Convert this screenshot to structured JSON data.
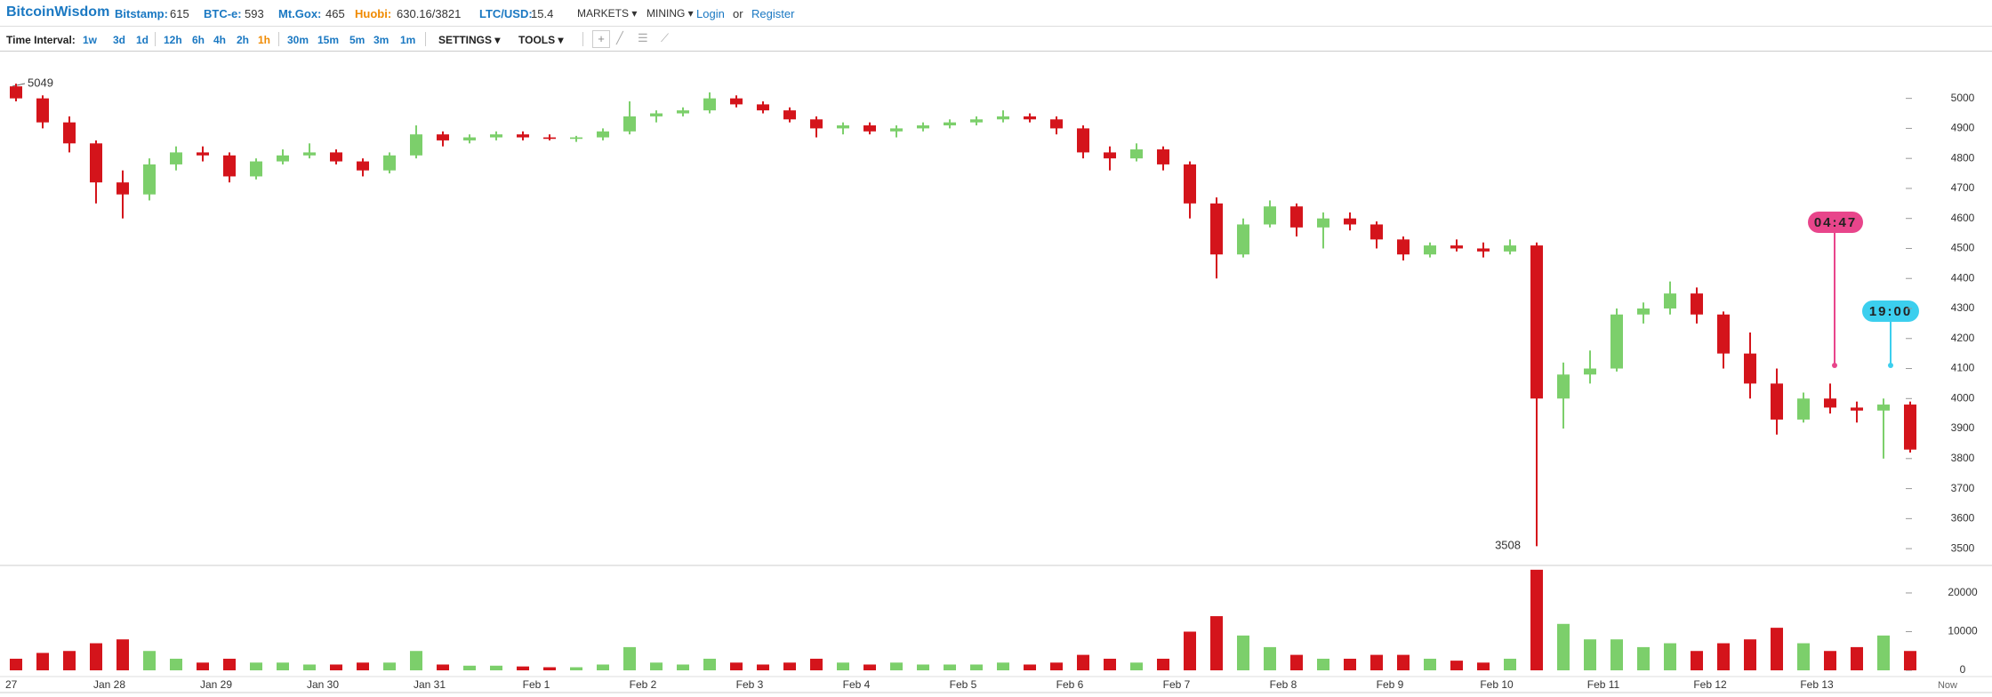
{
  "header": {
    "logo": "BitcoinWisdom",
    "prices": [
      {
        "label": "Bitstamp:",
        "value": "615"
      },
      {
        "label": "BTC-e:",
        "value": "593"
      },
      {
        "label": "Mt.Gox:",
        "value": "465"
      },
      {
        "label": "Huobi:",
        "value": "630.16/3821"
      },
      {
        "label": "LTC/USD:",
        "value": "15.4"
      }
    ],
    "menus": [
      "MARKETS",
      "MINING"
    ],
    "login": "Login",
    "or": "or",
    "register": "Register"
  },
  "toolbar": {
    "label": "Time Interval:",
    "intervals": [
      "1w",
      "3d",
      "1d",
      "12h",
      "6h",
      "4h",
      "2h",
      "1h",
      "30m",
      "15m",
      "5m",
      "3m",
      "1m"
    ],
    "settings": "SETTINGS",
    "tools": "TOOLS"
  },
  "chart_data": {
    "type": "candlestick",
    "categories": [
      "27",
      null,
      null,
      null,
      "Jan 28",
      null,
      null,
      null,
      "Jan 29",
      null,
      null,
      null,
      "Jan 30",
      null,
      null,
      null,
      "Jan 31",
      null,
      null,
      null,
      "Feb 1",
      null,
      null,
      null,
      "Feb 2",
      null,
      null,
      null,
      "Feb 3",
      null,
      null,
      null,
      "Feb 4",
      null,
      null,
      null,
      "Feb 5",
      null,
      null,
      null,
      "Feb 6",
      null,
      null,
      null,
      "Feb 7",
      null,
      null,
      null,
      "Feb 8",
      null,
      null,
      null,
      "Feb 9",
      null,
      null,
      null,
      "Feb 10",
      null,
      null,
      null,
      "Feb 11",
      null,
      null,
      null,
      "Feb 12",
      null,
      null,
      null,
      "Feb 13",
      null,
      null,
      null
    ],
    "end_label": "Now",
    "open": [
      5040,
      5000,
      4920,
      4850,
      4720,
      4680,
      4780,
      4820,
      4810,
      4740,
      4790,
      4810,
      4820,
      4790,
      4760,
      4810,
      4880,
      4860,
      4870,
      4880,
      4870,
      4865,
      4870,
      4890,
      4940,
      4950,
      4960,
      5000,
      4980,
      4960,
      4930,
      4900,
      4910,
      4890,
      4900,
      4910,
      4920,
      4930,
      4940,
      4930,
      4900,
      4820,
      4800,
      4830,
      4780,
      4650,
      4480,
      4580,
      4640,
      4570,
      4600,
      4580,
      4530,
      4480,
      4510,
      4500,
      4490,
      4510,
      4000,
      4080,
      4100,
      4280,
      4300,
      4350,
      4280,
      4150,
      4050,
      3930,
      4000,
      3970,
      3960,
      3980
    ],
    "high": [
      5049,
      5010,
      4940,
      4860,
      4760,
      4800,
      4840,
      4840,
      4820,
      4800,
      4830,
      4850,
      4830,
      4800,
      4820,
      4910,
      4890,
      4880,
      4890,
      4890,
      4880,
      4875,
      4900,
      4990,
      4960,
      4970,
      5020,
      5010,
      4990,
      4970,
      4940,
      4920,
      4920,
      4910,
      4920,
      4930,
      4940,
      4960,
      4950,
      4940,
      4910,
      4840,
      4850,
      4840,
      4790,
      4670,
      4600,
      4660,
      4650,
      4620,
      4620,
      4590,
      4540,
      4520,
      4530,
      4520,
      4530,
      4520,
      4120,
      4160,
      4300,
      4320,
      4390,
      4370,
      4290,
      4220,
      4100,
      4020,
      4050,
      3990,
      4000,
      3990
    ],
    "low": [
      4990,
      4900,
      4820,
      4650,
      4600,
      4660,
      4760,
      4790,
      4720,
      4730,
      4780,
      4800,
      4780,
      4740,
      4750,
      4800,
      4840,
      4850,
      4860,
      4860,
      4860,
      4855,
      4860,
      4880,
      4920,
      4940,
      4950,
      4970,
      4950,
      4920,
      4870,
      4880,
      4880,
      4870,
      4890,
      4900,
      4910,
      4920,
      4920,
      4880,
      4800,
      4760,
      4790,
      4760,
      4600,
      4400,
      4470,
      4570,
      4540,
      4500,
      4560,
      4500,
      4460,
      4470,
      4490,
      4470,
      4480,
      3508,
      3900,
      4050,
      4090,
      4250,
      4280,
      4250,
      4100,
      4000,
      3880,
      3920,
      3950,
      3920,
      3800,
      3820
    ],
    "close": [
      5000,
      4920,
      4850,
      4720,
      4680,
      4780,
      4820,
      4810,
      4740,
      4790,
      4810,
      4820,
      4790,
      4760,
      4810,
      4880,
      4860,
      4870,
      4880,
      4870,
      4865,
      4870,
      4890,
      4940,
      4950,
      4960,
      5000,
      4980,
      4960,
      4930,
      4900,
      4910,
      4890,
      4900,
      4910,
      4920,
      4930,
      4940,
      4930,
      4900,
      4820,
      4800,
      4830,
      4780,
      4650,
      4480,
      4580,
      4640,
      4570,
      4600,
      4580,
      4530,
      4480,
      4510,
      4500,
      4490,
      4510,
      4000,
      4080,
      4100,
      4280,
      4300,
      4350,
      4280,
      4150,
      4050,
      3930,
      4000,
      3970,
      3960,
      3980,
      3830
    ],
    "volume": [
      3000,
      4500,
      5000,
      7000,
      8000,
      5000,
      3000,
      2000,
      3000,
      2000,
      2000,
      1500,
      1500,
      2000,
      2000,
      5000,
      1500,
      1200,
      1200,
      1000,
      800,
      800,
      1500,
      6000,
      2000,
      1500,
      3000,
      2000,
      1500,
      2000,
      3000,
      2000,
      1500,
      2000,
      1500,
      1500,
      1500,
      2000,
      1500,
      2000,
      4000,
      3000,
      2000,
      3000,
      10000,
      14000,
      9000,
      6000,
      4000,
      3000,
      3000,
      4000,
      4000,
      3000,
      2500,
      2000,
      3000,
      26000,
      12000,
      8000,
      8000,
      6000,
      7000,
      5000,
      7000,
      8000,
      11000,
      7000,
      5000,
      6000,
      9000,
      5000
    ],
    "up_color": "#7ccf6b",
    "down_color": "#d4141b",
    "ylim": [
      3450,
      5150
    ],
    "yticks": [
      3500,
      3600,
      3700,
      3800,
      3900,
      4000,
      4100,
      4200,
      4300,
      4400,
      4500,
      4600,
      4700,
      4800,
      4900,
      5000
    ],
    "volume_lim": [
      0,
      27000
    ],
    "volume_ticks": [
      0,
      10000,
      20000
    ],
    "high_label": 5049,
    "low_label": 3508,
    "timers": [
      {
        "label": "04:47",
        "color": "#e8458b"
      },
      {
        "label": "19:00",
        "color": "#3ccfee"
      }
    ]
  }
}
